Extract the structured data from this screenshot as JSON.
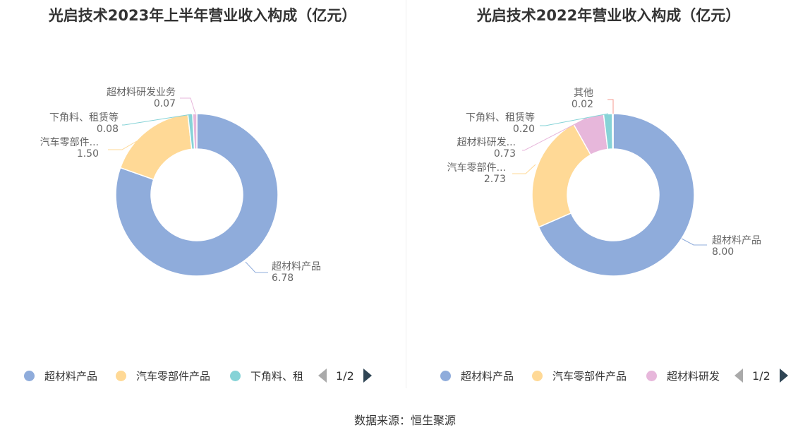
{
  "source_label": "数据来源：恒生聚源",
  "charts": [
    {
      "title": "光启技术2023年上半年营业收入构成（亿元）",
      "legend": {
        "items": [
          {
            "label": "超材料产品",
            "color": "#8facdb"
          },
          {
            "label": "汽车零部件产品",
            "color": "#ffd996"
          },
          {
            "label": "下角料、租",
            "color": "#86d3d7"
          }
        ],
        "page": "1/2"
      }
    },
    {
      "title": "光启技术2022年营业收入构成（亿元）",
      "legend": {
        "items": [
          {
            "label": "超材料产品",
            "color": "#8facdb"
          },
          {
            "label": "汽车零部件产品",
            "color": "#ffd996"
          },
          {
            "label": "超材料研发",
            "color": "#e7b7db"
          }
        ],
        "page": "1/2"
      }
    }
  ],
  "chart_data": [
    {
      "type": "pie",
      "donut": true,
      "title": "光启技术2023年上半年营业收入构成（亿元）",
      "slices": [
        {
          "name": "超材料产品",
          "label": "超材料产品",
          "value": 6.78,
          "value_label": "6.78",
          "color": "#8facdb"
        },
        {
          "name": "汽车零部件产品",
          "label": "汽车零部件...",
          "value": 1.5,
          "value_label": "1.50",
          "color": "#ffd996"
        },
        {
          "name": "下角料、租赁等",
          "label": "下角料、租赁等",
          "value": 0.08,
          "value_label": "0.08",
          "color": "#86d3d7"
        },
        {
          "name": "超材料研发业务",
          "label": "超材料研发业务",
          "value": 0.07,
          "value_label": "0.07",
          "color": "#e7b7db"
        }
      ],
      "legend_position": "bottom"
    },
    {
      "type": "pie",
      "donut": true,
      "title": "光启技术2022年营业收入构成（亿元）",
      "slices": [
        {
          "name": "超材料产品",
          "label": "超材料产品",
          "value": 8.0,
          "value_label": "8.00",
          "color": "#8facdb"
        },
        {
          "name": "汽车零部件产品",
          "label": "汽车零部件...",
          "value": 2.73,
          "value_label": "2.73",
          "color": "#ffd996"
        },
        {
          "name": "超材料研发",
          "label": "超材料研发...",
          "value": 0.73,
          "value_label": "0.73",
          "color": "#e7b7db"
        },
        {
          "name": "下角料、租赁等",
          "label": "下角料、租赁等",
          "value": 0.2,
          "value_label": "0.20",
          "color": "#86d3d7"
        },
        {
          "name": "其他",
          "label": "其他",
          "value": 0.02,
          "value_label": "0.02",
          "color": "#f59a8f"
        }
      ],
      "legend_position": "bottom"
    }
  ]
}
